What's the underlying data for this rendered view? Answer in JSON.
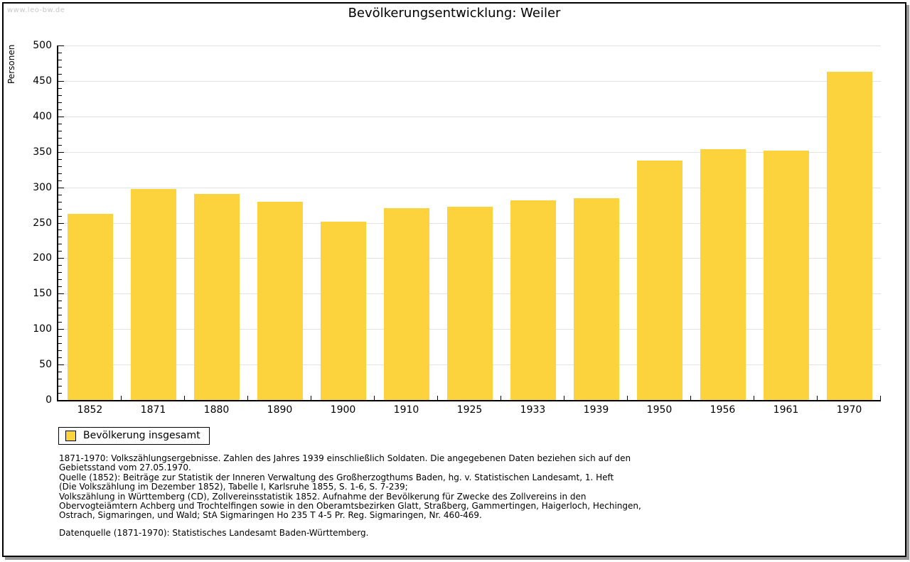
{
  "watermark": "www.leo-bw.de",
  "title": "Bevölkerungsentwicklung: Weiler",
  "chart_data": {
    "type": "bar",
    "title": "Bevölkerungsentwicklung: Weiler",
    "categories": [
      "1852",
      "1871",
      "1880",
      "1890",
      "1900",
      "1910",
      "1925",
      "1933",
      "1939",
      "1950",
      "1956",
      "1961",
      "1970"
    ],
    "values": [
      263,
      298,
      291,
      280,
      252,
      271,
      273,
      282,
      285,
      338,
      354,
      352,
      463
    ],
    "series_name": "Bevölkerung insgesamt",
    "xlabel": "",
    "ylabel": "Personen",
    "ylim": [
      0,
      500
    ],
    "ytick_step": 50,
    "minor_tick_step": 10,
    "grid": true,
    "legend_position": "bottom-left"
  },
  "legend": {
    "label": "Bevölkerung insgesamt"
  },
  "colors": {
    "bar": "#fcd33c",
    "grid": "#e3e3e3",
    "axis": "#000000",
    "watermark": "#c8c8c8"
  },
  "footnotes": {
    "lines": [
      "1871-1970: Volkszählungsergebnisse. Zahlen des Jahres 1939 einschließlich Soldaten. Die angegebenen Daten beziehen sich auf den",
      "Gebietsstand vom 27.05.1970.",
      "Quelle (1852): Beiträge zur Statistik der Inneren Verwaltung des Großherzogthums Baden, hg. v. Statistischen Landesamt, 1. Heft",
      "(Die Volkszählung im Dezember 1852), Tabelle I, Karlsruhe 1855, S. 1-6, S. 7-239;",
      "Volkszählung in Württemberg (CD), Zollvereinsstatistik 1852. Aufnahme der Bevölkerung für Zwecke des Zollvereins in den",
      "Obervogteiämtern Achberg und Trochtelfingen sowie in den Oberamtsbezirken Glatt, Straßberg, Gammertingen, Haigerloch, Hechingen,",
      "Ostrach, Sigmaringen, und Wald; StA Sigmaringen Ho 235 T 4-5 Pr. Reg. Sigmaringen, Nr. 460-469."
    ],
    "source": "Datenquelle (1871-1970): Statistisches Landesamt Baden-Württemberg."
  }
}
